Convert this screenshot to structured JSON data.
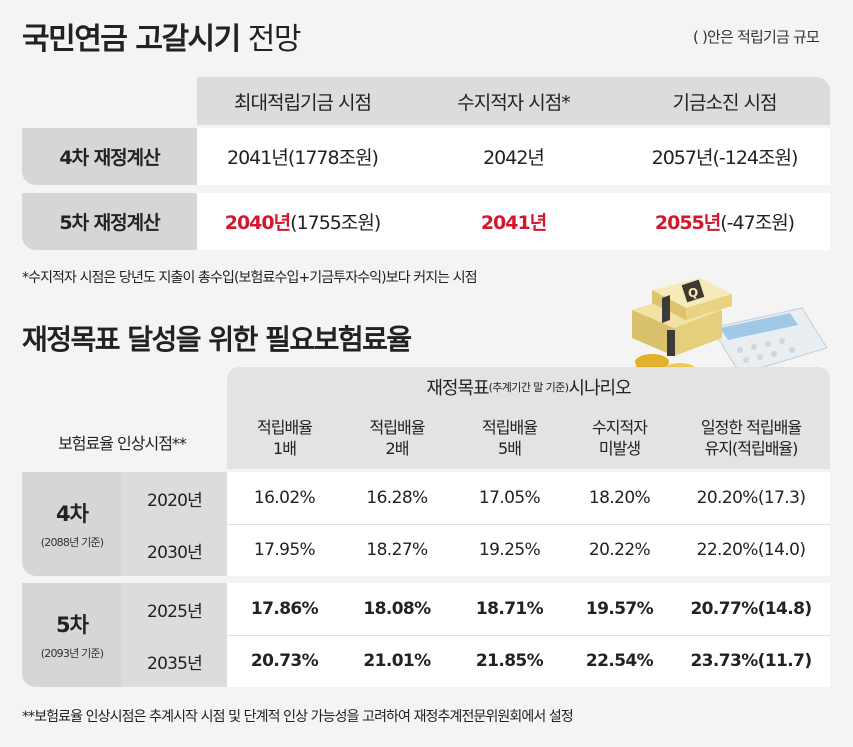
{
  "header": {
    "title_bold": "국민연금 고갈시기",
    "title_light": "전망",
    "note": "( )안은 적립기금 규모"
  },
  "forecast_table": {
    "columns": [
      "최대적립기금 시점",
      "수지적자 시점*",
      "기금소진 시점"
    ],
    "rows": [
      {
        "label": "4차 재정계산",
        "c1_year": "",
        "c1_black": "2041년(1778조원)",
        "c2": "2042년",
        "c2_red": false,
        "c3_year": "",
        "c3_black": "2057년(-124조원)"
      },
      {
        "label": "5차 재정계산",
        "c1_year": "2040년",
        "c1_black": "(1755조원)",
        "c2": "2041년",
        "c2_red": true,
        "c3_year": "2055년",
        "c3_black": "(-47조원)"
      }
    ],
    "footnote": "*수지적자 시점은 당년도 지출이 총수입(보험료수입+기금투자수익)보다 커지는 시점"
  },
  "rate_section": {
    "title": "재정목표 달성을 위한 필요보험료율",
    "scenario_main": "재정목표",
    "scenario_small": "(추계기간 말 기준)",
    "scenario_tail": " 시나리오",
    "axis_label": "보험료율 인상시점**",
    "columns": [
      {
        "line1": "적립배율",
        "line2": "1배"
      },
      {
        "line1": "적립배율",
        "line2": "2배"
      },
      {
        "line1": "적립배율",
        "line2": "5배"
      },
      {
        "line1": "수지적자",
        "line2": "미발생"
      },
      {
        "line1": "일정한 적립배율",
        "line2": "유지(적립배율)"
      }
    ],
    "groups": [
      {
        "label": "4차",
        "sublabel": "(2088년 기준)",
        "rows": [
          {
            "year": "2020년",
            "values": [
              "16.02%",
              "16.28%",
              "17.05%",
              "18.20%",
              "20.20%(17.3)"
            ]
          },
          {
            "year": "2030년",
            "values": [
              "17.95%",
              "18.27%",
              "19.25%",
              "20.22%",
              "22.20%(14.0)"
            ]
          }
        ]
      },
      {
        "label": "5차",
        "sublabel": "(2093년 기준)",
        "rows": [
          {
            "year": "2025년",
            "values": [
              "17.86%",
              "18.08%",
              "18.71%",
              "19.57%",
              "20.77%(14.8)"
            ]
          },
          {
            "year": "2035년",
            "values": [
              "20.73%",
              "21.01%",
              "21.85%",
              "22.54%",
              "23.73%(11.7)"
            ]
          }
        ]
      }
    ],
    "footnote": "**보험료율 인상시점은 추계시작 시점 및 단계적 인상 가능성을 고려하여 재정추계전문위원회에서 설정"
  },
  "colors": {
    "accent_red": "#d3182e",
    "header_gray": "#dcdcdc",
    "label_gray": "#d6d6d6",
    "background": "#f4f4f4"
  },
  "illustration": "money-stack-coins-calculator"
}
